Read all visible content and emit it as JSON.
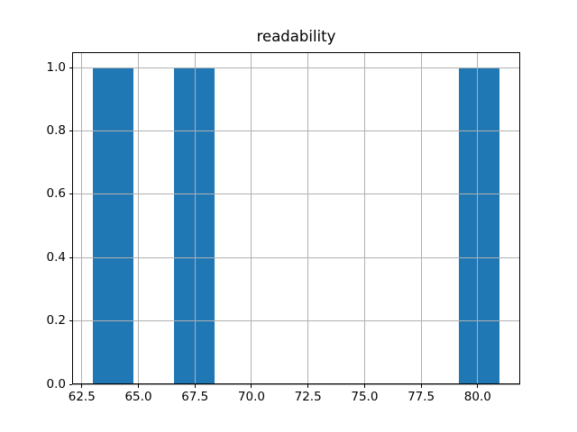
{
  "chart_data": {
    "type": "bar",
    "chart_style": "matplotlib-histogram",
    "title": "readability",
    "xlabel": "",
    "ylabel": "",
    "xlim": [
      62.07,
      81.88
    ],
    "ylim": [
      0,
      1.05
    ],
    "xticks": [
      62.5,
      65.0,
      67.5,
      70.0,
      72.5,
      75.0,
      77.5,
      80.0
    ],
    "xtick_labels": [
      "62.5",
      "65.0",
      "67.5",
      "70.0",
      "72.5",
      "75.0",
      "77.5",
      "80.0"
    ],
    "yticks": [
      0.0,
      0.2,
      0.4,
      0.6,
      0.8,
      1.0
    ],
    "ytick_labels": [
      "0.0",
      "0.2",
      "0.4",
      "0.6",
      "0.8",
      "1.0"
    ],
    "grid": true,
    "grid_on_top_of_bars": true,
    "legend": null,
    "bar_color": "#1f77b4",
    "grid_color": "#b0b0b0",
    "spine_color": "#000000",
    "background_color": "#ffffff",
    "bin_edges": [
      62.97,
      64.77,
      66.57,
      68.37,
      70.17,
      71.98,
      73.78,
      75.58,
      77.38,
      79.18,
      80.98
    ],
    "counts": [
      1,
      0,
      1,
      0,
      0,
      0,
      0,
      0,
      0,
      1
    ],
    "bars": [
      {
        "x_start": 62.97,
        "x_end": 64.77,
        "height": 1.0
      },
      {
        "x_start": 66.57,
        "x_end": 68.37,
        "height": 1.0
      },
      {
        "x_start": 79.18,
        "x_end": 80.98,
        "height": 1.0
      }
    ]
  }
}
